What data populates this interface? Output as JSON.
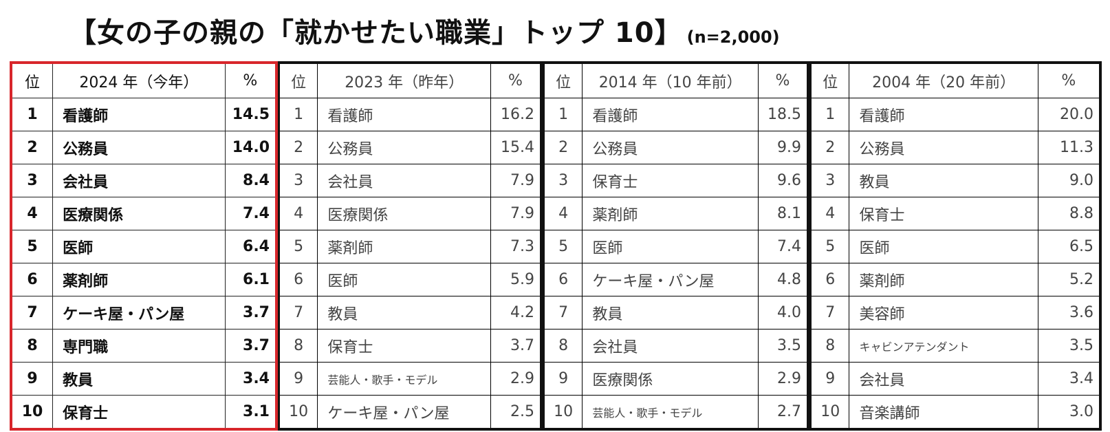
{
  "header": {
    "title": "【女の子の親の「就かせたい職業」トップ 10】",
    "sample": "(n=2,000)"
  },
  "tables": [
    {
      "rank_header": "位",
      "year_header": "2024 年（今年）",
      "pct_header": "%",
      "rows": [
        {
          "rank": "1",
          "job": "看護師",
          "pct": "14.5"
        },
        {
          "rank": "2",
          "job": "公務員",
          "pct": "14.0"
        },
        {
          "rank": "3",
          "job": "会社員",
          "pct": "8.4"
        },
        {
          "rank": "4",
          "job": "医療関係",
          "pct": "7.4"
        },
        {
          "rank": "5",
          "job": "医師",
          "pct": "6.4"
        },
        {
          "rank": "6",
          "job": "薬剤師",
          "pct": "6.1"
        },
        {
          "rank": "7",
          "job": "ケーキ屋・パン屋",
          "pct": "3.7"
        },
        {
          "rank": "8",
          "job": "専門職",
          "pct": "3.7"
        },
        {
          "rank": "9",
          "job": "教員",
          "pct": "3.4"
        },
        {
          "rank": "10",
          "job": "保育士",
          "pct": "3.1"
        }
      ]
    },
    {
      "rank_header": "位",
      "year_header": "2023 年（昨年）",
      "pct_header": "%",
      "rows": [
        {
          "rank": "1",
          "job": "看護師",
          "pct": "16.2"
        },
        {
          "rank": "2",
          "job": "公務員",
          "pct": "15.4"
        },
        {
          "rank": "3",
          "job": "会社員",
          "pct": "7.9"
        },
        {
          "rank": "4",
          "job": "医療関係",
          "pct": "7.9"
        },
        {
          "rank": "5",
          "job": "薬剤師",
          "pct": "7.3"
        },
        {
          "rank": "6",
          "job": "医師",
          "pct": "5.9"
        },
        {
          "rank": "7",
          "job": "教員",
          "pct": "4.2"
        },
        {
          "rank": "8",
          "job": "保育士",
          "pct": "3.7"
        },
        {
          "rank": "9",
          "job": "芸能人・歌手・モデル",
          "pct": "2.9"
        },
        {
          "rank": "10",
          "job": "ケーキ屋・パン屋",
          "pct": "2.5"
        }
      ]
    },
    {
      "rank_header": "位",
      "year_header": "2014 年（10 年前）",
      "pct_header": "%",
      "rows": [
        {
          "rank": "1",
          "job": "看護師",
          "pct": "18.5"
        },
        {
          "rank": "2",
          "job": "公務員",
          "pct": "9.9"
        },
        {
          "rank": "3",
          "job": "保育士",
          "pct": "9.6"
        },
        {
          "rank": "4",
          "job": "薬剤師",
          "pct": "8.1"
        },
        {
          "rank": "5",
          "job": "医師",
          "pct": "7.4"
        },
        {
          "rank": "6",
          "job": "ケーキ屋・パン屋",
          "pct": "4.8"
        },
        {
          "rank": "7",
          "job": "教員",
          "pct": "4.0"
        },
        {
          "rank": "8",
          "job": "会社員",
          "pct": "3.5"
        },
        {
          "rank": "9",
          "job": "医療関係",
          "pct": "2.9"
        },
        {
          "rank": "10",
          "job": "芸能人・歌手・モデル",
          "pct": "2.7"
        }
      ]
    },
    {
      "rank_header": "位",
      "year_header": "2004 年（20 年前）",
      "pct_header": "%",
      "rows": [
        {
          "rank": "1",
          "job": "看護師",
          "pct": "20.0"
        },
        {
          "rank": "2",
          "job": "公務員",
          "pct": "11.3"
        },
        {
          "rank": "3",
          "job": "教員",
          "pct": "9.0"
        },
        {
          "rank": "4",
          "job": "保育士",
          "pct": "8.8"
        },
        {
          "rank": "5",
          "job": "医師",
          "pct": "6.5"
        },
        {
          "rank": "6",
          "job": "薬剤師",
          "pct": "5.2"
        },
        {
          "rank": "7",
          "job": "美容師",
          "pct": "3.6"
        },
        {
          "rank": "8",
          "job": "キャビンアテンダント",
          "pct": "3.5"
        },
        {
          "rank": "9",
          "job": "会社員",
          "pct": "3.4"
        },
        {
          "rank": "10",
          "job": "音楽講師",
          "pct": "3.0"
        }
      ]
    }
  ],
  "colors": {
    "highlight_border": "#d8262b",
    "border": "#111111"
  }
}
